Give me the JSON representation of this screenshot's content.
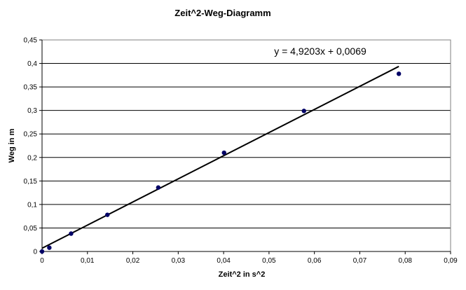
{
  "chart_data": {
    "type": "scatter",
    "title": "Zeit^2-Weg-Diagramm",
    "xlabel": "Zeit^2 in s^2",
    "ylabel": "Weg in m",
    "xlim": [
      0,
      0.09
    ],
    "ylim": [
      0,
      0.45
    ],
    "x_ticks": [
      "0",
      "0,01",
      "0,02",
      "0,03",
      "0,04",
      "0,05",
      "0,06",
      "0,07",
      "0,08",
      "0,09"
    ],
    "y_ticks": [
      "0",
      "0,05",
      "0,1",
      "0,15",
      "0,2",
      "0,25",
      "0,3",
      "0,35",
      "0,4",
      "0,45"
    ],
    "grid": "horizontal",
    "legend": "none",
    "series": [
      {
        "x": [
          0,
          0.0016,
          0.0064,
          0.0144,
          0.0256,
          0.0401,
          0.0577,
          0.0786
        ],
        "y": [
          0,
          0.008,
          0.038,
          0.078,
          0.136,
          0.21,
          0.299,
          0.378
        ],
        "color": "#000066"
      }
    ],
    "trendline": {
      "slope": 4.9203,
      "intercept": 0.0069,
      "x_range": [
        0,
        0.0786
      ],
      "color": "#000000",
      "label": "y = 4,9203x + 0,0069"
    }
  }
}
